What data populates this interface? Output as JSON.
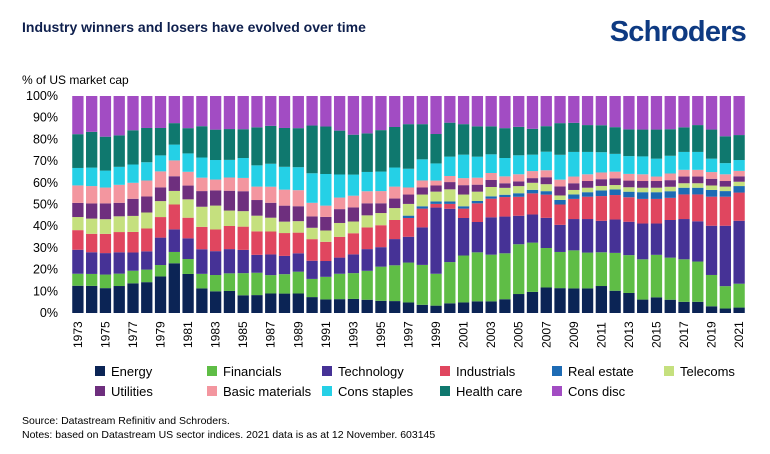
{
  "header": {
    "title": "Industry winners and losers have evolved over time",
    "logo_text": "Schroders"
  },
  "chart_data": {
    "type": "bar",
    "stacked": true,
    "ylabel": "% of US market cap",
    "ylim": [
      0,
      100
    ],
    "yticks": [
      "0%",
      "10%",
      "20%",
      "30%",
      "40%",
      "50%",
      "60%",
      "70%",
      "80%",
      "90%",
      "100%"
    ],
    "grid": false,
    "legend_position": "bottom",
    "categories": [
      1973,
      1974,
      1975,
      1976,
      1977,
      1978,
      1979,
      1980,
      1981,
      1982,
      1983,
      1984,
      1985,
      1986,
      1987,
      1988,
      1989,
      1990,
      1991,
      1992,
      1993,
      1994,
      1995,
      1996,
      1997,
      1998,
      1999,
      2000,
      2001,
      2002,
      2003,
      2004,
      2005,
      2006,
      2007,
      2008,
      2009,
      2010,
      2011,
      2012,
      2013,
      2014,
      2015,
      2016,
      2017,
      2018,
      2019,
      2020,
      2021
    ],
    "xtick_labels": [
      "1973",
      "1975",
      "1977",
      "1979",
      "1981",
      "1983",
      "1985",
      "1987",
      "1989",
      "1991",
      "1993",
      "1995",
      "1997",
      "1999",
      "2001",
      "2003",
      "2005",
      "2007",
      "2009",
      "2011",
      "2013",
      "2015",
      "2017",
      "2019",
      "2021"
    ],
    "series": [
      {
        "name": "Energy",
        "color": "#0b2455",
        "values": [
          12.5,
          12.5,
          11,
          12,
          13,
          13.5,
          16,
          22,
          17,
          11,
          10,
          10,
          8,
          8,
          8.5,
          8.5,
          8.5,
          7,
          6,
          6,
          6,
          5.5,
          5,
          5,
          4.5,
          3.5,
          3,
          4,
          4.5,
          5,
          5,
          6,
          8,
          9,
          11,
          11,
          11,
          11,
          12,
          10,
          9,
          6,
          7,
          6,
          5,
          5,
          3,
          2,
          2.5
        ]
      },
      {
        "name": "Financials",
        "color": "#5fbd46",
        "values": [
          5.5,
          5.5,
          6,
          5.5,
          5.5,
          5.5,
          5,
          5,
          6.5,
          6.5,
          7.5,
          8,
          10,
          10,
          8,
          8.5,
          9.5,
          8,
          10,
          11,
          11,
          12,
          14,
          15,
          17,
          17,
          13,
          17,
          20,
          21,
          20,
          20,
          21,
          21,
          17,
          16,
          17,
          16,
          15,
          17,
          17,
          18,
          19,
          19,
          19,
          18,
          14,
          10,
          11
        ]
      },
      {
        "name": "Technology",
        "color": "#463296",
        "values": [
          11,
          10,
          9.5,
          9.5,
          8,
          8,
          12,
          10,
          9,
          11,
          11,
          11,
          10.5,
          8,
          9,
          8,
          8,
          8,
          7,
          7,
          8,
          9,
          8,
          11,
          11,
          16,
          27,
          22,
          16,
          13,
          16,
          16,
          12,
          12,
          13,
          12,
          14,
          15,
          14,
          15,
          15,
          16,
          14,
          17,
          18,
          18,
          22,
          27,
          29
        ]
      },
      {
        "name": "Industrials",
        "color": "#e0465f",
        "values": [
          9,
          8.5,
          8.5,
          9,
          9,
          10,
          9,
          11,
          9,
          10,
          10,
          10.5,
          10.5,
          10.5,
          10,
          10,
          9,
          9.5,
          8.5,
          9,
          9,
          9,
          9,
          8,
          8,
          8,
          1.5,
          2,
          4,
          8,
          8,
          8.5,
          8,
          9,
          10,
          9,
          9,
          10,
          11,
          11,
          11,
          11,
          11,
          10,
          11,
          12,
          13,
          13,
          13
        ]
      },
      {
        "name": "Real estate",
        "color": "#1d6bb4",
        "values": [
          0,
          0,
          0,
          0,
          0,
          0,
          0,
          0,
          0,
          0,
          0,
          0,
          0,
          0,
          0,
          0,
          0,
          0,
          0,
          0,
          0,
          0,
          0,
          0,
          1,
          1,
          1,
          1,
          1,
          1,
          1,
          1,
          1.5,
          1.5,
          1.5,
          2,
          2,
          2,
          2.5,
          2.5,
          2.5,
          3,
          3,
          3,
          3,
          3,
          3,
          2.5,
          3
        ]
      },
      {
        "name": "Telecoms",
        "color": "#c5e07e",
        "values": [
          6,
          7,
          6.5,
          7,
          7,
          7,
          7,
          6,
          8,
          9,
          11,
          7,
          7,
          7,
          6,
          5,
          5,
          5,
          5,
          6,
          5,
          5,
          5,
          5,
          5,
          5,
          4,
          5,
          5,
          4,
          4,
          3,
          3,
          3,
          3,
          2,
          2,
          2,
          2,
          2,
          2,
          2,
          2,
          2,
          2,
          2,
          2,
          2,
          2
        ]
      },
      {
        "name": "Utilities",
        "color": "#6e2f7e",
        "values": [
          6.5,
          7,
          7,
          6,
          7.5,
          7,
          6,
          6.5,
          6,
          7,
          7,
          9,
          9,
          7,
          6.5,
          7,
          6.5,
          5,
          6,
          6,
          6,
          5,
          4,
          4,
          4,
          3,
          2.5,
          3,
          4,
          3,
          3,
          2,
          2,
          2,
          3,
          4,
          3,
          3,
          3,
          3,
          3,
          3,
          3,
          3,
          3,
          3,
          3,
          2.5,
          2.5
        ]
      },
      {
        "name": "Basic materials",
        "color": "#f3969f",
        "values": [
          8,
          8,
          7,
          8,
          7,
          7,
          7,
          7,
          6,
          6,
          5,
          6,
          6,
          6,
          7,
          7,
          7,
          6,
          5,
          5,
          5,
          5,
          5,
          5,
          3,
          3,
          2,
          2.5,
          3,
          3,
          3,
          3,
          3,
          3,
          3,
          3,
          3,
          3,
          3,
          3,
          3,
          3,
          2,
          3,
          3,
          3,
          3,
          3,
          2.5
        ]
      },
      {
        "name": "Cons staples",
        "color": "#25d0e6",
        "values": [
          8,
          8.5,
          7.5,
          8,
          8,
          8,
          7,
          7,
          8,
          9,
          9,
          8,
          9,
          9.5,
          10,
          10,
          10,
          13,
          14,
          10,
          9,
          8,
          8,
          8,
          8,
          9,
          7,
          8,
          10,
          9,
          8,
          8,
          8,
          7,
          8,
          11,
          11,
          10,
          9,
          8,
          8,
          8,
          8,
          8,
          8,
          8,
          6,
          5,
          5
        ]
      },
      {
        "name": "Health care",
        "color": "#0f786e",
        "values": [
          15.5,
          16.5,
          15,
          14,
          15,
          15,
          12,
          9.5,
          11,
          14,
          14,
          14,
          13,
          17,
          16.5,
          17,
          17,
          21,
          21,
          19,
          17,
          16,
          17,
          17,
          19,
          15,
          12,
          14,
          13,
          13,
          12,
          13,
          12,
          11,
          11,
          14,
          13,
          12,
          12,
          12,
          12,
          12,
          13,
          12,
          11,
          12,
          13,
          12,
          11.5
        ]
      },
      {
        "name": "Cons disc",
        "color": "#a24cc3",
        "values": [
          17.5,
          16.5,
          18,
          17.5,
          15,
          14,
          14,
          12,
          14,
          13.5,
          15.5,
          15,
          15,
          14,
          13,
          14,
          14,
          13,
          13.5,
          15,
          16.5,
          15.5,
          14,
          13,
          12,
          12,
          15.5,
          11,
          12,
          13,
          13,
          14,
          13,
          14,
          13,
          12,
          12,
          13,
          13,
          14,
          15,
          15,
          15,
          15,
          14,
          13,
          15,
          18,
          18
        ]
      }
    ]
  },
  "footer": {
    "source": "Source: Datastream Refinitiv and Schroders.",
    "notes": "Notes: based on Datastream US sector indices. 2021 data is as at 12 November. 603145"
  }
}
